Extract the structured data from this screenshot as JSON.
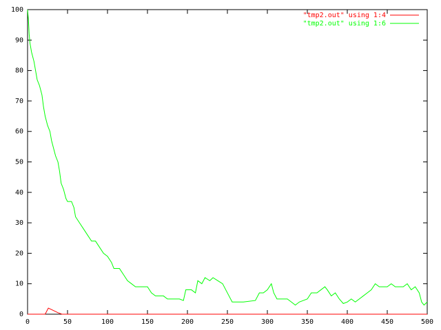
{
  "chart_data": {
    "type": "line",
    "xlim": [
      0,
      500
    ],
    "xticks": [
      0,
      50,
      100,
      150,
      200,
      250,
      300,
      350,
      400,
      450,
      500
    ],
    "ylim": [
      0,
      100
    ],
    "yticks": [
      0,
      10,
      20,
      30,
      40,
      50,
      60,
      70,
      80,
      90,
      100
    ],
    "legend": "top-right",
    "series": [
      {
        "name": "\"tmp2.out\" using 1:4",
        "color": "#ff0000",
        "x": [
          0,
          22,
          26,
          30,
          38,
          43,
          500
        ],
        "values": [
          0,
          0,
          2,
          1.5,
          0.5,
          0,
          0
        ]
      },
      {
        "name": "\"tmp2.out\" using 1:6",
        "color": "#00ff00",
        "x": [
          0,
          1,
          2,
          3,
          5,
          8,
          10,
          12,
          15,
          18,
          20,
          22,
          25,
          28,
          30,
          32,
          35,
          38,
          40,
          42,
          45,
          48,
          50,
          55,
          58,
          60,
          65,
          70,
          75,
          80,
          85,
          90,
          95,
          100,
          105,
          108,
          115,
          120,
          125,
          130,
          135,
          150,
          155,
          160,
          170,
          175,
          190,
          195,
          198,
          205,
          210,
          213,
          218,
          222,
          228,
          232,
          238,
          244,
          248,
          252,
          256,
          270,
          285,
          290,
          295,
          300,
          305,
          308,
          312,
          325,
          330,
          335,
          340,
          345,
          350,
          355,
          362,
          367,
          372,
          375,
          380,
          385,
          390,
          395,
          400,
          405,
          410,
          415,
          420,
          425,
          430,
          435,
          440,
          450,
          455,
          460,
          470,
          475,
          480,
          485,
          490,
          493,
          496,
          500
        ],
        "values": [
          100,
          97,
          92,
          89,
          86,
          83,
          80,
          77,
          75,
          72,
          68,
          65,
          62,
          60,
          57,
          55,
          52,
          50,
          47,
          43,
          41,
          38,
          37,
          37,
          35,
          32,
          30,
          28,
          26,
          24,
          24,
          22,
          20,
          19,
          17,
          15,
          15,
          13,
          11,
          10,
          9,
          9,
          7,
          6,
          6,
          5,
          5,
          4.5,
          8,
          8,
          7,
          11,
          10,
          12,
          11,
          12,
          11,
          10,
          8,
          6,
          4,
          4,
          4.5,
          7,
          7,
          8,
          10,
          7,
          5,
          5,
          4,
          3,
          4,
          4.5,
          5,
          7,
          7,
          8,
          9,
          8,
          6,
          7,
          5,
          3.5,
          4,
          5,
          4,
          5,
          6,
          7,
          8,
          10,
          9,
          9,
          10,
          9,
          9,
          10,
          8,
          9,
          7,
          4,
          3,
          4
        ]
      }
    ]
  }
}
